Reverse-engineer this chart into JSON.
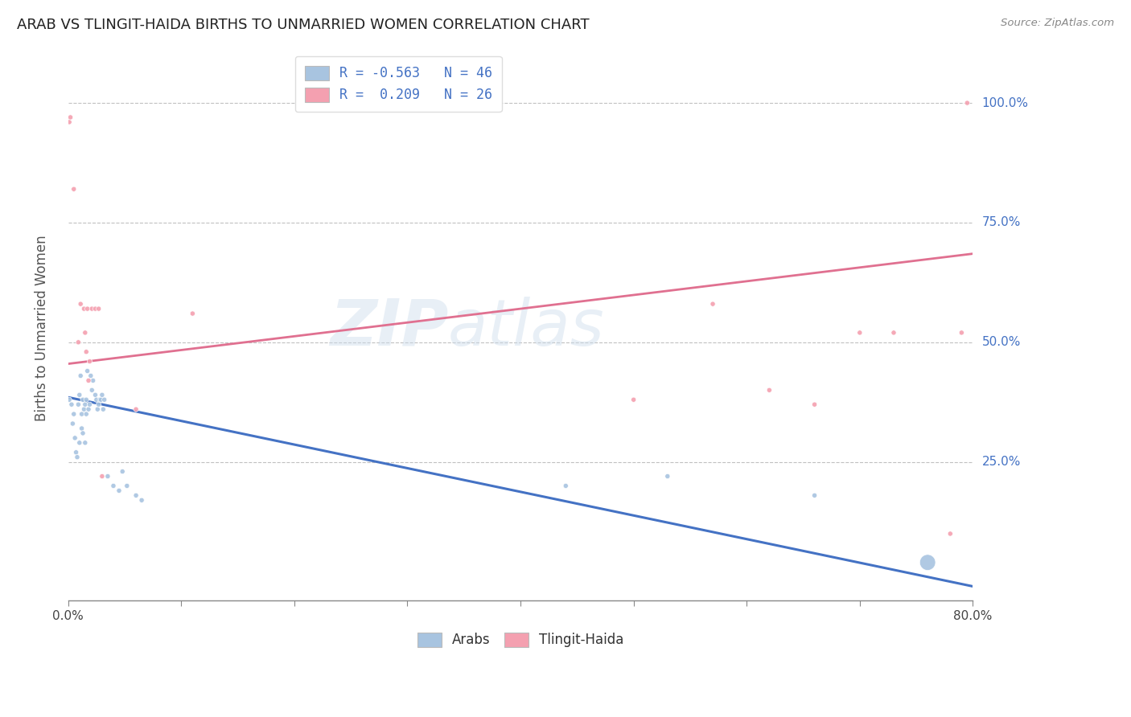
{
  "title": "ARAB VS TLINGIT-HAIDA BIRTHS TO UNMARRIED WOMEN CORRELATION CHART",
  "source": "Source: ZipAtlas.com",
  "ylabel": "Births to Unmarried Women",
  "ytick_labels": [
    "100.0%",
    "75.0%",
    "50.0%",
    "25.0%"
  ],
  "ytick_values": [
    1.0,
    0.75,
    0.5,
    0.25
  ],
  "xlim": [
    0.0,
    0.8
  ],
  "ylim": [
    -0.04,
    1.1
  ],
  "arab_color": "#a8c4e0",
  "tlingit_color": "#f4a0b0",
  "arab_line_color": "#4472c4",
  "tlingit_line_color": "#e07090",
  "watermark_zip": "ZIP",
  "watermark_atlas": "atlas",
  "arab_points_x": [
    0.001,
    0.003,
    0.004,
    0.005,
    0.006,
    0.007,
    0.008,
    0.009,
    0.01,
    0.01,
    0.011,
    0.012,
    0.012,
    0.013,
    0.013,
    0.014,
    0.015,
    0.015,
    0.016,
    0.016,
    0.017,
    0.018,
    0.019,
    0.02,
    0.021,
    0.022,
    0.024,
    0.025,
    0.026,
    0.027,
    0.028,
    0.029,
    0.03,
    0.031,
    0.032,
    0.035,
    0.04,
    0.045,
    0.048,
    0.052,
    0.06,
    0.065,
    0.44,
    0.53,
    0.66,
    0.76
  ],
  "arab_points_y": [
    0.38,
    0.37,
    0.33,
    0.35,
    0.3,
    0.27,
    0.26,
    0.37,
    0.39,
    0.29,
    0.43,
    0.35,
    0.32,
    0.31,
    0.38,
    0.36,
    0.29,
    0.37,
    0.35,
    0.38,
    0.44,
    0.36,
    0.37,
    0.43,
    0.4,
    0.42,
    0.39,
    0.38,
    0.36,
    0.37,
    0.38,
    0.38,
    0.39,
    0.36,
    0.38,
    0.22,
    0.2,
    0.19,
    0.23,
    0.2,
    0.18,
    0.17,
    0.2,
    0.22,
    0.18,
    0.04
  ],
  "arab_points_size": [
    20,
    20,
    20,
    20,
    20,
    20,
    20,
    20,
    20,
    20,
    20,
    20,
    20,
    20,
    20,
    20,
    20,
    20,
    20,
    20,
    20,
    20,
    20,
    20,
    20,
    20,
    20,
    20,
    20,
    20,
    20,
    20,
    20,
    20,
    20,
    20,
    20,
    20,
    20,
    20,
    20,
    20,
    20,
    20,
    20,
    200
  ],
  "tlingit_points_x": [
    0.001,
    0.002,
    0.005,
    0.009,
    0.011,
    0.014,
    0.015,
    0.016,
    0.017,
    0.018,
    0.019,
    0.021,
    0.024,
    0.027,
    0.03,
    0.06,
    0.11,
    0.5,
    0.57,
    0.62,
    0.66,
    0.7,
    0.73,
    0.78,
    0.79,
    0.795
  ],
  "tlingit_points_y": [
    0.96,
    0.97,
    0.82,
    0.5,
    0.58,
    0.57,
    0.52,
    0.48,
    0.57,
    0.42,
    0.46,
    0.57,
    0.57,
    0.57,
    0.22,
    0.36,
    0.56,
    0.38,
    0.58,
    0.4,
    0.37,
    0.52,
    0.52,
    0.1,
    0.52,
    1.0
  ],
  "tlingit_points_size": [
    20,
    20,
    20,
    20,
    20,
    20,
    20,
    20,
    20,
    20,
    20,
    20,
    20,
    20,
    20,
    20,
    20,
    20,
    20,
    20,
    20,
    20,
    20,
    20,
    20,
    20
  ],
  "arab_line_x0": 0.0,
  "arab_line_x1": 0.8,
  "arab_line_y0": 0.385,
  "arab_line_y1": -0.01,
  "tlingit_line_x0": 0.0,
  "tlingit_line_x1": 0.8,
  "tlingit_line_y0": 0.455,
  "tlingit_line_y1": 0.685,
  "grid_color": "#c0c0c0",
  "background_color": "#ffffff",
  "legend_arab_label": "R = -0.563   N = 46",
  "legend_tlingit_label": "R =  0.209   N = 26",
  "legend_text_color": "#4472c4"
}
